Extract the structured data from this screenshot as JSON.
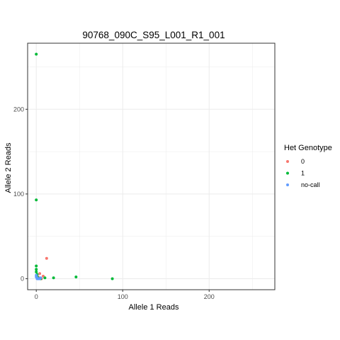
{
  "chart_data": {
    "type": "scatter",
    "title": "90768_090C_S95_L001_R1_001",
    "xlabel": "Allele 1 Reads",
    "ylabel": "Allele 2 Reads",
    "xlim": [
      -10,
      276
    ],
    "ylim": [
      -13,
      278
    ],
    "x_ticks": [
      0,
      100,
      200
    ],
    "y_ticks": [
      0,
      100,
      200
    ],
    "grid": true,
    "legend": {
      "title": "Het Genotype",
      "position": "right"
    },
    "series": [
      {
        "name": "0",
        "color": "#F8766D",
        "points": [
          {
            "x": 12,
            "y": 24
          },
          {
            "x": 4,
            "y": 6
          },
          {
            "x": 8,
            "y": 3
          },
          {
            "x": 2,
            "y": 2
          },
          {
            "x": 3,
            "y": 1
          },
          {
            "x": 6,
            "y": 0
          }
        ]
      },
      {
        "name": "1",
        "color": "#00BA38",
        "points": [
          {
            "x": 0,
            "y": 265
          },
          {
            "x": 0,
            "y": 93
          },
          {
            "x": 0,
            "y": 15
          },
          {
            "x": 0,
            "y": 11
          },
          {
            "x": 0,
            "y": 8
          },
          {
            "x": 1,
            "y": 5
          },
          {
            "x": 1,
            "y": 2
          },
          {
            "x": 2,
            "y": 1
          },
          {
            "x": 5,
            "y": 0
          },
          {
            "x": 10,
            "y": 1
          },
          {
            "x": 20,
            "y": 1
          },
          {
            "x": 46,
            "y": 2
          },
          {
            "x": 88,
            "y": 0
          }
        ]
      },
      {
        "name": "no-call",
        "color": "#619CFF",
        "points": [
          {
            "x": 0,
            "y": 4
          },
          {
            "x": 0,
            "y": 2
          },
          {
            "x": 1,
            "y": 1
          },
          {
            "x": 2,
            "y": 0
          },
          {
            "x": 3,
            "y": 0
          },
          {
            "x": 4,
            "y": 0
          },
          {
            "x": 5,
            "y": 1
          },
          {
            "x": 1,
            "y": 0
          }
        ]
      }
    ]
  }
}
